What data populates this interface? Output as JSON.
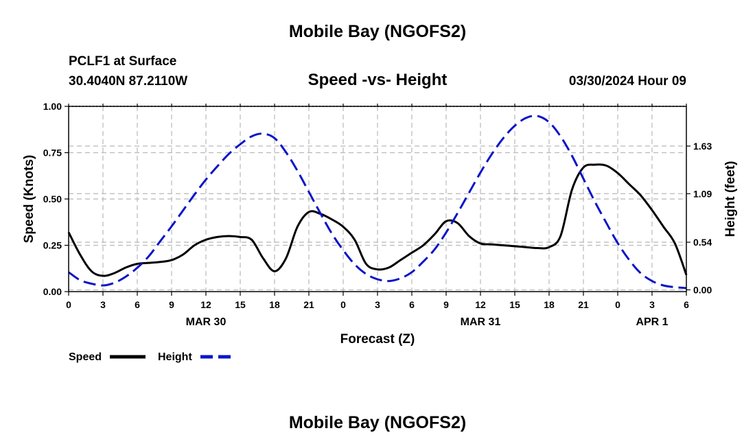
{
  "header": {
    "title": "Mobile Bay (NGOFS2)",
    "station": "PCLF1 at Surface",
    "coords": "30.4040N  87.2110W",
    "chart_title": "Speed -vs- Height",
    "timestamp": "03/30/2024 Hour 09"
  },
  "footer": {
    "title": "Mobile Bay (NGOFS2)"
  },
  "colors": {
    "speed": "#000000",
    "height": "#0b15c8",
    "grid": "#b8b8b8",
    "axis": "#000000"
  },
  "chart_data": {
    "type": "line",
    "title": "Speed -vs- Height",
    "xlabel": "Forecast (Z)",
    "ylabel_left": "Speed (Knots)",
    "ylabel_right": "Height (feet)",
    "x_hours_range": [
      0,
      54
    ],
    "ylim_left": [
      0,
      1.0
    ],
    "ylim_right": [
      -0.02,
      2.08
    ],
    "grid": true,
    "legend_position": "bottom-left",
    "x_ticks": [
      {
        "hour": 0,
        "label": "0"
      },
      {
        "hour": 3,
        "label": "3"
      },
      {
        "hour": 6,
        "label": "6"
      },
      {
        "hour": 9,
        "label": "9"
      },
      {
        "hour": 12,
        "label": "12"
      },
      {
        "hour": 15,
        "label": "15"
      },
      {
        "hour": 18,
        "label": "18"
      },
      {
        "hour": 21,
        "label": "21"
      },
      {
        "hour": 24,
        "label": "0"
      },
      {
        "hour": 27,
        "label": "3"
      },
      {
        "hour": 30,
        "label": "6"
      },
      {
        "hour": 33,
        "label": "9"
      },
      {
        "hour": 36,
        "label": "12"
      },
      {
        "hour": 39,
        "label": "15"
      },
      {
        "hour": 42,
        "label": "18"
      },
      {
        "hour": 45,
        "label": "21"
      },
      {
        "hour": 48,
        "label": "0"
      },
      {
        "hour": 51,
        "label": "3"
      },
      {
        "hour": 54,
        "label": "6"
      }
    ],
    "date_labels": [
      {
        "hour": 12,
        "label": "MAR 30"
      },
      {
        "hour": 36,
        "label": "MAR 31"
      },
      {
        "hour": 51,
        "label": "APR 1"
      }
    ],
    "y_left_ticks": [
      {
        "value": 0.0,
        "label": "0.00"
      },
      {
        "value": 0.25,
        "label": "0.25"
      },
      {
        "value": 0.5,
        "label": "0.50"
      },
      {
        "value": 0.75,
        "label": "0.75"
      },
      {
        "value": 1.0,
        "label": "1.00"
      }
    ],
    "y_right_ticks": [
      {
        "value": 0.0,
        "label": "0.00"
      },
      {
        "value": 0.54,
        "label": "0.54"
      },
      {
        "value": 1.09,
        "label": "1.09"
      },
      {
        "value": 1.63,
        "label": "1.63"
      }
    ],
    "series": [
      {
        "name": "Speed",
        "axis": "left",
        "color": "#000000",
        "dash": "solid",
        "points": [
          [
            0,
            0.32
          ],
          [
            1,
            0.2
          ],
          [
            2,
            0.11
          ],
          [
            3,
            0.085
          ],
          [
            4,
            0.1
          ],
          [
            5,
            0.13
          ],
          [
            6,
            0.15
          ],
          [
            7,
            0.155
          ],
          [
            8,
            0.16
          ],
          [
            9,
            0.17
          ],
          [
            10,
            0.2
          ],
          [
            11,
            0.25
          ],
          [
            12,
            0.28
          ],
          [
            13,
            0.295
          ],
          [
            14,
            0.3
          ],
          [
            15,
            0.295
          ],
          [
            16,
            0.28
          ],
          [
            17,
            0.18
          ],
          [
            18,
            0.11
          ],
          [
            19,
            0.18
          ],
          [
            20,
            0.35
          ],
          [
            21,
            0.43
          ],
          [
            22,
            0.42
          ],
          [
            23,
            0.39
          ],
          [
            24,
            0.35
          ],
          [
            25,
            0.28
          ],
          [
            26,
            0.15
          ],
          [
            27,
            0.12
          ],
          [
            28,
            0.13
          ],
          [
            29,
            0.17
          ],
          [
            30,
            0.21
          ],
          [
            31,
            0.25
          ],
          [
            32,
            0.31
          ],
          [
            33,
            0.38
          ],
          [
            34,
            0.37
          ],
          [
            35,
            0.3
          ],
          [
            36,
            0.26
          ],
          [
            37,
            0.255
          ],
          [
            38,
            0.25
          ],
          [
            39,
            0.245
          ],
          [
            40,
            0.24
          ],
          [
            41,
            0.235
          ],
          [
            42,
            0.24
          ],
          [
            43,
            0.3
          ],
          [
            44,
            0.55
          ],
          [
            45,
            0.67
          ],
          [
            46,
            0.685
          ],
          [
            47,
            0.68
          ],
          [
            48,
            0.64
          ],
          [
            49,
            0.58
          ],
          [
            50,
            0.52
          ],
          [
            51,
            0.44
          ],
          [
            52,
            0.35
          ],
          [
            53,
            0.26
          ],
          [
            54,
            0.09
          ]
        ]
      },
      {
        "name": "Height",
        "axis": "right",
        "color": "#0b15c8",
        "dash": "dashed",
        "points": [
          [
            0,
            0.2
          ],
          [
            1,
            0.11
          ],
          [
            2,
            0.07
          ],
          [
            3,
            0.05
          ],
          [
            4,
            0.08
          ],
          [
            5,
            0.15
          ],
          [
            6,
            0.25
          ],
          [
            7,
            0.38
          ],
          [
            8,
            0.55
          ],
          [
            9,
            0.72
          ],
          [
            10,
            0.9
          ],
          [
            11,
            1.08
          ],
          [
            12,
            1.25
          ],
          [
            13,
            1.4
          ],
          [
            14,
            1.54
          ],
          [
            15,
            1.65
          ],
          [
            16,
            1.74
          ],
          [
            17,
            1.77
          ],
          [
            18,
            1.72
          ],
          [
            19,
            1.56
          ],
          [
            20,
            1.35
          ],
          [
            21,
            1.11
          ],
          [
            22,
            0.87
          ],
          [
            23,
            0.64
          ],
          [
            24,
            0.45
          ],
          [
            25,
            0.29
          ],
          [
            26,
            0.18
          ],
          [
            27,
            0.12
          ],
          [
            28,
            0.1
          ],
          [
            29,
            0.13
          ],
          [
            30,
            0.2
          ],
          [
            31,
            0.32
          ],
          [
            32,
            0.46
          ],
          [
            33,
            0.65
          ],
          [
            34,
            0.87
          ],
          [
            35,
            1.1
          ],
          [
            36,
            1.33
          ],
          [
            37,
            1.54
          ],
          [
            38,
            1.72
          ],
          [
            39,
            1.86
          ],
          [
            40,
            1.95
          ],
          [
            41,
            1.97
          ],
          [
            42,
            1.9
          ],
          [
            43,
            1.74
          ],
          [
            44,
            1.52
          ],
          [
            45,
            1.26
          ],
          [
            46,
            1.0
          ],
          [
            47,
            0.76
          ],
          [
            48,
            0.53
          ],
          [
            49,
            0.34
          ],
          [
            50,
            0.19
          ],
          [
            51,
            0.1
          ],
          [
            52,
            0.05
          ],
          [
            53,
            0.03
          ],
          [
            54,
            0.02
          ]
        ]
      }
    ]
  }
}
